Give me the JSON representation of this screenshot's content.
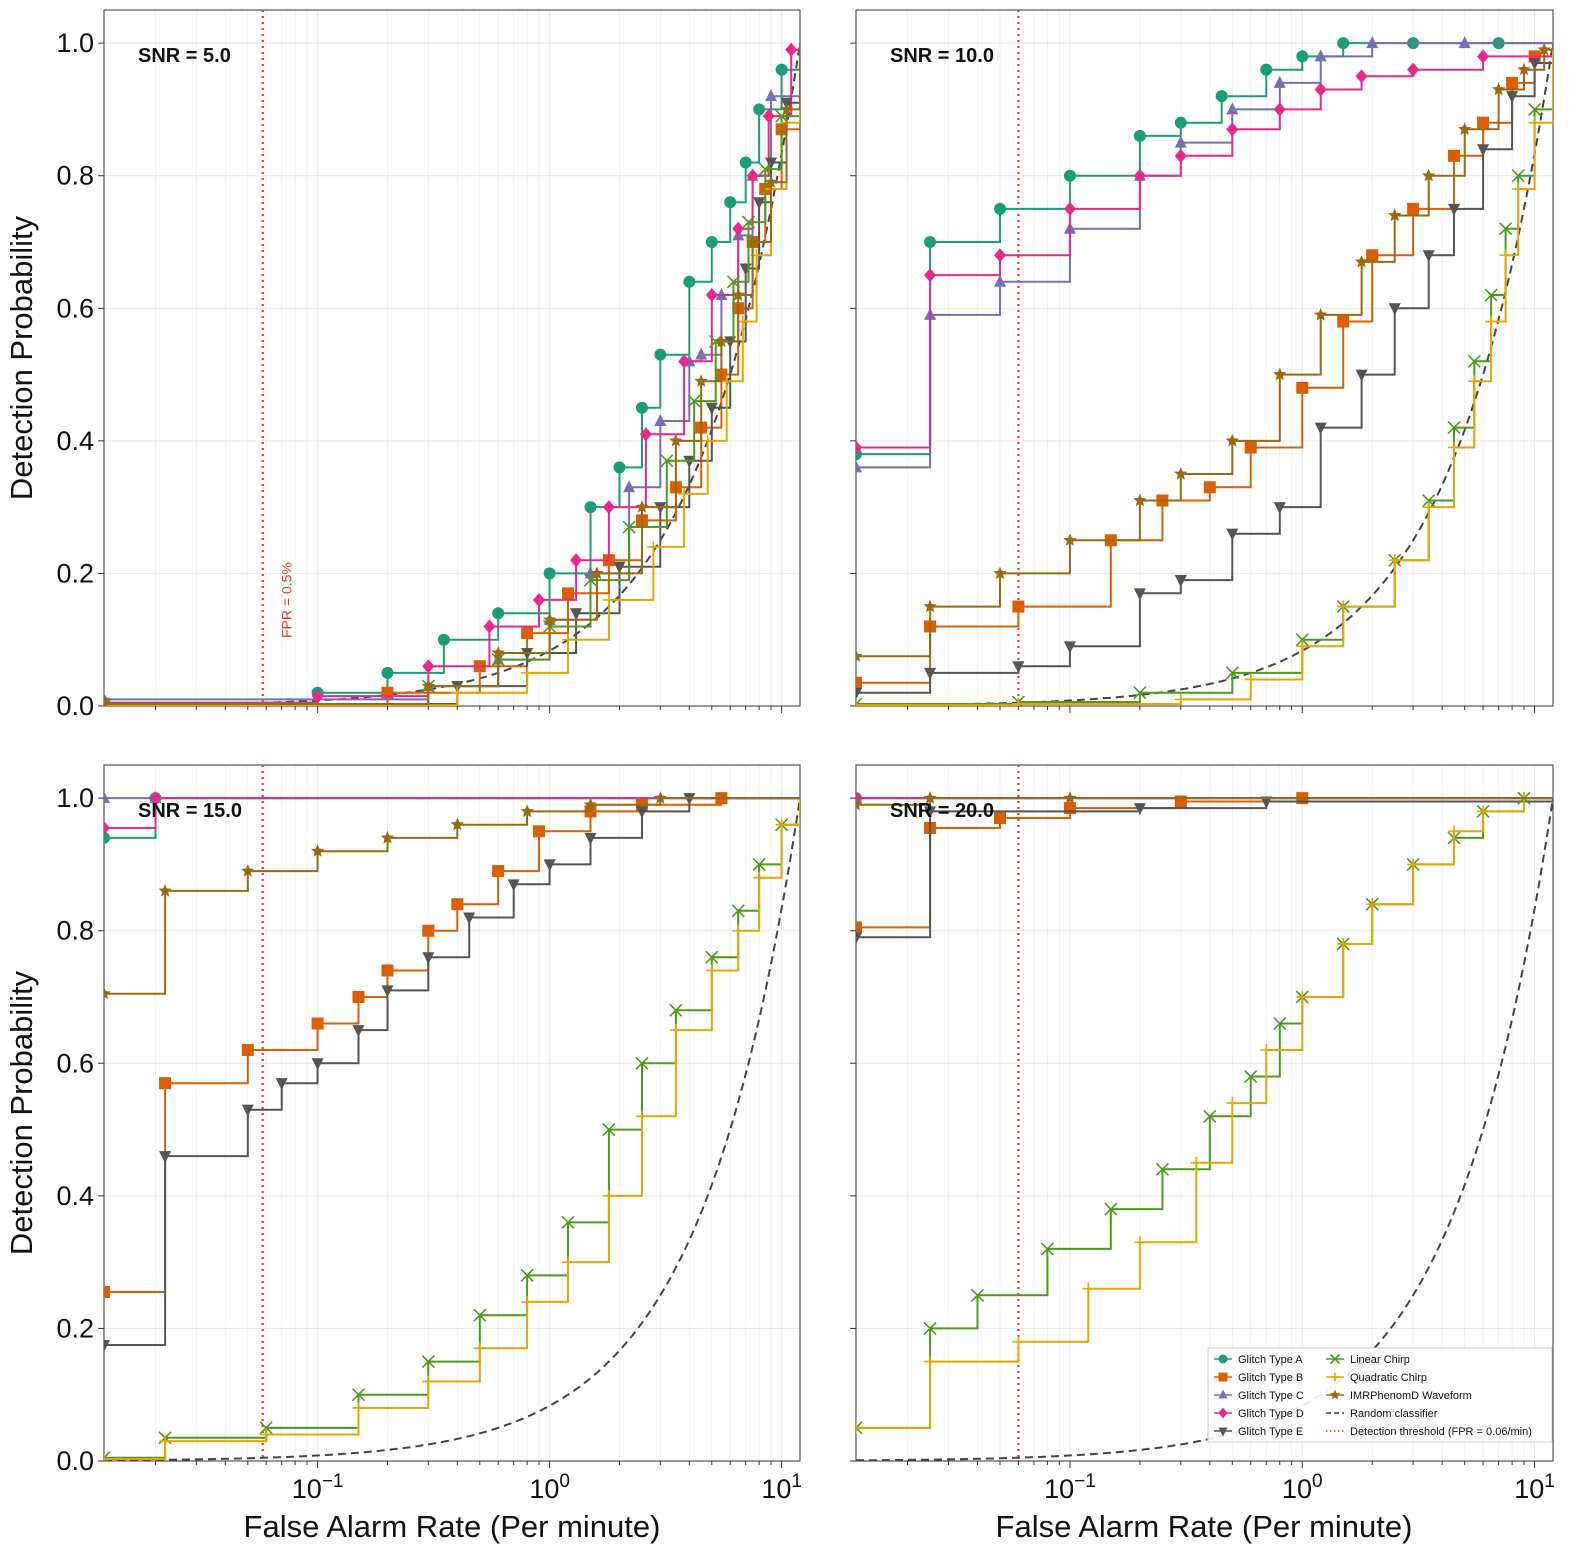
{
  "figure": {
    "ylabel": "Detection Probability",
    "xlabel": "False Alarm Rate (Per minute)",
    "x_tick_labels": [
      {
        "base": "10",
        "exp": "−1"
      },
      {
        "base": "10",
        "exp": "0"
      },
      {
        "base": "10",
        "exp": "1"
      }
    ],
    "y_tick_labels": [
      "0.0",
      "0.2",
      "0.4",
      "0.6",
      "0.8",
      "1.0"
    ],
    "threshold_annotation": "FPR = 0.5%",
    "colors": {
      "glitch_a": "#1b9e77",
      "glitch_b": "#d95f02",
      "glitch_c": "#7570b3",
      "glitch_d": "#e7298a",
      "glitch_e": "#555555",
      "linear_chirp": "#4d9a1f",
      "quadratic_chirp": "#e6a500",
      "imrphenomd": "#9a6a10",
      "random": "#444444",
      "threshold": "#e03c31"
    }
  },
  "legend": [
    "Glitch Type A",
    "Glitch Type B",
    "Glitch Type C",
    "Glitch Type D",
    "Glitch Type E",
    "Linear Chirp",
    "Quadratic Chirp",
    "IMRPhenomD Waveform",
    "Random classifier",
    "Detection threshold (FPR = 0.06/min)"
  ],
  "chart_data": [
    {
      "type": "line",
      "title": "SNR = 5.0",
      "xscale": "log",
      "xlim": [
        0.012,
        12
      ],
      "ylim": [
        0,
        1.05
      ],
      "threshold_x": 0.058,
      "series": [
        {
          "name": "Glitch Type A",
          "x": [
            0.012,
            0.1,
            0.2,
            0.35,
            0.6,
            1.0,
            1.5,
            2.0,
            2.5,
            3.0,
            4.0,
            5.0,
            6.0,
            7.0,
            8.0,
            10.0,
            12.0
          ],
          "y": [
            0.005,
            0.02,
            0.05,
            0.1,
            0.14,
            0.2,
            0.3,
            0.36,
            0.45,
            0.53,
            0.64,
            0.7,
            0.76,
            0.82,
            0.9,
            0.96,
            1.0
          ]
        },
        {
          "name": "Glitch Type B",
          "x": [
            0.012,
            0.2,
            0.5,
            0.8,
            1.2,
            1.8,
            2.5,
            3.5,
            4.5,
            5.5,
            6.5,
            7.5,
            8.5,
            10.0,
            12.0
          ],
          "y": [
            0.002,
            0.02,
            0.06,
            0.11,
            0.17,
            0.22,
            0.28,
            0.33,
            0.42,
            0.5,
            0.6,
            0.7,
            0.78,
            0.87,
            1.0
          ]
        },
        {
          "name": "Glitch Type C",
          "x": [
            0.012,
            0.3,
            0.6,
            1.0,
            1.5,
            2.2,
            3.0,
            4.0,
            4.5,
            5.5,
            6.5,
            7.5,
            9.0,
            12.0
          ],
          "y": [
            0.01,
            0.03,
            0.07,
            0.13,
            0.2,
            0.33,
            0.43,
            0.52,
            0.53,
            0.62,
            0.71,
            0.8,
            0.92,
            1.0
          ]
        },
        {
          "name": "Glitch Type D",
          "x": [
            0.012,
            0.1,
            0.3,
            0.55,
            0.9,
            1.3,
            1.8,
            2.6,
            3.8,
            5.0,
            6.5,
            7.5,
            8.8,
            11.0,
            12.0
          ],
          "y": [
            0.005,
            0.015,
            0.06,
            0.12,
            0.16,
            0.22,
            0.3,
            0.41,
            0.52,
            0.62,
            0.72,
            0.8,
            0.89,
            0.99,
            1.0
          ]
        },
        {
          "name": "Glitch Type E",
          "x": [
            0.012,
            0.4,
            0.8,
            1.3,
            2.0,
            3.0,
            4.0,
            5.0,
            6.0,
            7.0,
            8.0,
            9.0,
            10.5,
            12.0
          ],
          "y": [
            0.003,
            0.03,
            0.08,
            0.14,
            0.21,
            0.3,
            0.37,
            0.45,
            0.55,
            0.66,
            0.76,
            0.82,
            0.91,
            1.0
          ]
        },
        {
          "name": "Linear Chirp",
          "x": [
            0.012,
            0.3,
            0.6,
            1.0,
            1.5,
            2.2,
            3.2,
            4.2,
            5.2,
            6.2,
            7.2,
            8.5,
            10.0,
            12.0
          ],
          "y": [
            0.003,
            0.03,
            0.07,
            0.12,
            0.19,
            0.27,
            0.37,
            0.46,
            0.55,
            0.64,
            0.73,
            0.81,
            0.89,
            1.0
          ]
        },
        {
          "name": "Quadratic Chirp",
          "x": [
            0.012,
            0.4,
            0.8,
            1.2,
            1.8,
            2.8,
            3.8,
            4.8,
            5.8,
            6.8,
            7.8,
            9.0,
            10.5,
            12.0
          ],
          "y": [
            0.001,
            0.02,
            0.05,
            0.1,
            0.16,
            0.24,
            0.32,
            0.4,
            0.49,
            0.58,
            0.68,
            0.78,
            0.88,
            1.0
          ]
        },
        {
          "name": "IMRPhenomD Waveform",
          "x": [
            0.012,
            0.3,
            0.6,
            1.0,
            1.6,
            2.5,
            3.5,
            4.5,
            5.5,
            6.5,
            7.5,
            9.0,
            10.5,
            12.0
          ],
          "y": [
            0.003,
            0.03,
            0.08,
            0.13,
            0.2,
            0.3,
            0.4,
            0.49,
            0.55,
            0.62,
            0.7,
            0.79,
            0.9,
            1.0
          ]
        }
      ]
    },
    {
      "type": "line",
      "title": "SNR = 10.0",
      "xscale": "log",
      "xlim": [
        0.012,
        12
      ],
      "ylim": [
        0,
        1.05
      ],
      "threshold_x": 0.06,
      "series": [
        {
          "name": "Glitch Type A",
          "x": [
            0.012,
            0.025,
            0.05,
            0.1,
            0.2,
            0.3,
            0.45,
            0.7,
            1.0,
            1.5,
            3.0,
            7.0,
            12.0
          ],
          "y": [
            0.38,
            0.7,
            0.75,
            0.8,
            0.86,
            0.88,
            0.92,
            0.96,
            0.98,
            1.0,
            1.0,
            1.0,
            1.0
          ]
        },
        {
          "name": "Glitch Type B",
          "x": [
            0.012,
            0.025,
            0.06,
            0.15,
            0.25,
            0.4,
            0.6,
            1.0,
            1.5,
            2.0,
            3.0,
            4.5,
            6.0,
            8.0,
            10.0,
            12.0
          ],
          "y": [
            0.035,
            0.12,
            0.15,
            0.25,
            0.31,
            0.33,
            0.39,
            0.48,
            0.58,
            0.68,
            0.75,
            0.83,
            0.88,
            0.94,
            0.98,
            1.0
          ]
        },
        {
          "name": "Glitch Type C",
          "x": [
            0.012,
            0.025,
            0.05,
            0.1,
            0.2,
            0.3,
            0.5,
            0.8,
            1.2,
            2.0,
            5.0,
            12.0
          ],
          "y": [
            0.36,
            0.59,
            0.64,
            0.72,
            0.8,
            0.85,
            0.9,
            0.94,
            0.98,
            1.0,
            1.0,
            1.0
          ]
        },
        {
          "name": "Glitch Type D",
          "x": [
            0.012,
            0.025,
            0.05,
            0.1,
            0.2,
            0.3,
            0.5,
            0.8,
            1.2,
            1.8,
            3.0,
            6.0,
            12.0
          ],
          "y": [
            0.39,
            0.65,
            0.68,
            0.75,
            0.8,
            0.83,
            0.87,
            0.9,
            0.93,
            0.95,
            0.96,
            0.98,
            1.0
          ]
        },
        {
          "name": "Glitch Type E",
          "x": [
            0.012,
            0.025,
            0.06,
            0.1,
            0.2,
            0.3,
            0.5,
            0.8,
            1.2,
            1.8,
            2.5,
            3.5,
            4.5,
            6.0,
            8.0,
            10.0,
            12.0
          ],
          "y": [
            0.02,
            0.05,
            0.06,
            0.09,
            0.17,
            0.19,
            0.26,
            0.3,
            0.42,
            0.5,
            0.6,
            0.68,
            0.75,
            0.84,
            0.92,
            0.97,
            1.0
          ]
        },
        {
          "name": "Linear Chirp",
          "x": [
            0.012,
            0.06,
            0.2,
            0.5,
            1.0,
            1.5,
            2.5,
            3.5,
            4.5,
            5.5,
            6.5,
            7.5,
            8.5,
            10.0,
            12.0
          ],
          "y": [
            0.003,
            0.006,
            0.02,
            0.05,
            0.1,
            0.15,
            0.22,
            0.31,
            0.42,
            0.52,
            0.62,
            0.72,
            0.8,
            0.9,
            1.0
          ]
        },
        {
          "name": "Quadratic Chirp",
          "x": [
            0.012,
            0.06,
            0.3,
            0.6,
            1.0,
            1.5,
            2.5,
            3.5,
            4.5,
            5.5,
            6.5,
            7.5,
            8.5,
            10.0,
            12.0
          ],
          "y": [
            0.001,
            0.003,
            0.01,
            0.04,
            0.09,
            0.15,
            0.22,
            0.3,
            0.39,
            0.49,
            0.58,
            0.68,
            0.78,
            0.88,
            1.0
          ]
        },
        {
          "name": "IMRPhenomD Waveform",
          "x": [
            0.012,
            0.025,
            0.05,
            0.1,
            0.2,
            0.3,
            0.5,
            0.8,
            1.2,
            1.8,
            2.5,
            3.5,
            5.0,
            7.0,
            9.0,
            11.0,
            12.0
          ],
          "y": [
            0.075,
            0.15,
            0.2,
            0.25,
            0.31,
            0.35,
            0.4,
            0.5,
            0.59,
            0.67,
            0.74,
            0.8,
            0.87,
            0.93,
            0.96,
            0.99,
            1.0
          ]
        }
      ]
    },
    {
      "type": "line",
      "title": "SNR = 15.0",
      "xscale": "log",
      "xlim": [
        0.012,
        12
      ],
      "ylim": [
        0,
        1.05
      ],
      "threshold_x": 0.058,
      "series": [
        {
          "name": "Glitch Type A",
          "x": [
            0.012,
            0.02,
            12.0
          ],
          "y": [
            0.94,
            1.0,
            1.0
          ]
        },
        {
          "name": "Glitch Type B",
          "x": [
            0.012,
            0.022,
            0.05,
            0.1,
            0.15,
            0.2,
            0.3,
            0.4,
            0.6,
            0.9,
            1.5,
            2.5,
            5.5,
            12.0
          ],
          "y": [
            0.255,
            0.57,
            0.62,
            0.66,
            0.7,
            0.74,
            0.8,
            0.84,
            0.89,
            0.95,
            0.98,
            0.99,
            1.0,
            1.0
          ]
        },
        {
          "name": "Glitch Type C",
          "x": [
            0.012,
            0.02,
            12.0
          ],
          "y": [
            1.0,
            1.0,
            1.0
          ]
        },
        {
          "name": "Glitch Type D",
          "x": [
            0.012,
            0.02,
            12.0
          ],
          "y": [
            0.955,
            1.0,
            1.0
          ]
        },
        {
          "name": "Glitch Type E",
          "x": [
            0.012,
            0.022,
            0.05,
            0.07,
            0.1,
            0.15,
            0.2,
            0.3,
            0.45,
            0.7,
            1.0,
            1.5,
            2.5,
            4.0,
            12.0
          ],
          "y": [
            0.175,
            0.46,
            0.53,
            0.57,
            0.6,
            0.65,
            0.71,
            0.76,
            0.82,
            0.87,
            0.9,
            0.94,
            0.98,
            1.0,
            1.0
          ]
        },
        {
          "name": "Linear Chirp",
          "x": [
            0.012,
            0.022,
            0.06,
            0.15,
            0.3,
            0.5,
            0.8,
            1.2,
            1.8,
            2.5,
            3.5,
            5.0,
            6.5,
            8.0,
            10.0,
            12.0
          ],
          "y": [
            0.005,
            0.035,
            0.05,
            0.1,
            0.15,
            0.22,
            0.28,
            0.36,
            0.5,
            0.6,
            0.68,
            0.76,
            0.83,
            0.9,
            0.96,
            1.0
          ]
        },
        {
          "name": "Quadratic Chirp",
          "x": [
            0.012,
            0.022,
            0.06,
            0.15,
            0.3,
            0.5,
            0.8,
            1.2,
            1.8,
            2.5,
            3.5,
            5.0,
            6.5,
            8.0,
            10.0,
            12.0
          ],
          "y": [
            0.003,
            0.03,
            0.04,
            0.08,
            0.12,
            0.17,
            0.24,
            0.3,
            0.4,
            0.52,
            0.65,
            0.74,
            0.8,
            0.88,
            0.96,
            1.0
          ]
        },
        {
          "name": "IMRPhenomD Waveform",
          "x": [
            0.012,
            0.022,
            0.05,
            0.1,
            0.2,
            0.4,
            0.8,
            1.5,
            3.0,
            12.0
          ],
          "y": [
            0.705,
            0.86,
            0.89,
            0.92,
            0.94,
            0.96,
            0.98,
            0.99,
            1.0,
            1.0
          ]
        }
      ]
    },
    {
      "type": "line",
      "title": "SNR = 20.0",
      "xscale": "log",
      "xlim": [
        0.012,
        12
      ],
      "ylim": [
        0,
        1.05
      ],
      "threshold_x": 0.06,
      "series": [
        {
          "name": "Glitch Type A",
          "x": [
            0.012,
            12.0
          ],
          "y": [
            1.0,
            1.0
          ]
        },
        {
          "name": "Glitch Type B",
          "x": [
            0.012,
            0.025,
            0.05,
            0.1,
            0.3,
            1.0,
            12.0
          ],
          "y": [
            0.805,
            0.955,
            0.97,
            0.985,
            0.995,
            1.0,
            1.0
          ]
        },
        {
          "name": "Glitch Type C",
          "x": [
            0.012,
            12.0
          ],
          "y": [
            1.0,
            1.0
          ]
        },
        {
          "name": "Glitch Type D",
          "x": [
            0.012,
            12.0
          ],
          "y": [
            1.0,
            1.0
          ]
        },
        {
          "name": "Glitch Type E",
          "x": [
            0.012,
            0.025,
            0.2,
            0.7,
            12.0
          ],
          "y": [
            0.79,
            0.98,
            0.985,
            0.995,
            1.0
          ]
        },
        {
          "name": "Linear Chirp",
          "x": [
            0.012,
            0.025,
            0.04,
            0.08,
            0.15,
            0.25,
            0.4,
            0.6,
            0.8,
            1.0,
            1.5,
            2.0,
            3.0,
            4.5,
            6.0,
            9.0,
            12.0
          ],
          "y": [
            0.05,
            0.2,
            0.25,
            0.32,
            0.38,
            0.44,
            0.52,
            0.58,
            0.66,
            0.7,
            0.78,
            0.84,
            0.9,
            0.94,
            0.98,
            1.0,
            1.0
          ]
        },
        {
          "name": "Quadratic Chirp",
          "x": [
            0.012,
            0.025,
            0.06,
            0.12,
            0.2,
            0.35,
            0.5,
            0.7,
            1.0,
            1.5,
            2.0,
            3.0,
            4.5,
            6.0,
            9.0,
            12.0
          ],
          "y": [
            0.05,
            0.15,
            0.18,
            0.26,
            0.33,
            0.45,
            0.54,
            0.62,
            0.7,
            0.78,
            0.84,
            0.9,
            0.95,
            0.98,
            1.0,
            1.0
          ]
        },
        {
          "name": "IMRPhenomD Waveform",
          "x": [
            0.012,
            0.025,
            0.1,
            12.0
          ],
          "y": [
            0.99,
            1.0,
            1.0,
            1.0
          ]
        }
      ]
    }
  ]
}
